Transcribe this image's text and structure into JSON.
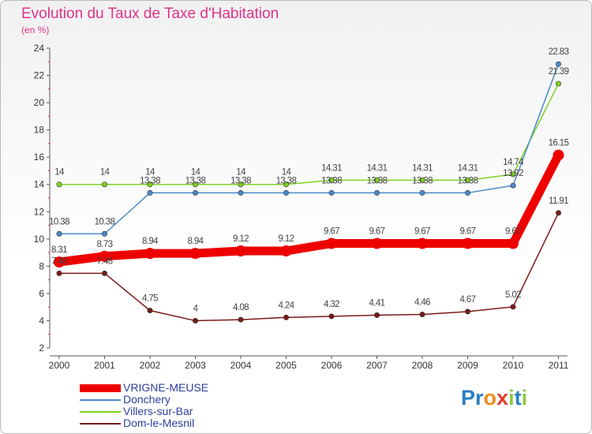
{
  "title": "Evolution du Taux de Taxe d'Habitation",
  "subtitle": "(en %)",
  "logo": {
    "text": "Proxiti",
    "letters": [
      "P",
      "r",
      "o",
      "x",
      "i",
      "t",
      "i"
    ],
    "colors": [
      "#2a7fc0",
      "#2a7fc0",
      "#f08a1e",
      "#e53a2a",
      "#8cc63f",
      "#2a7fc0",
      "#8cc63f"
    ]
  },
  "chart_data": {
    "type": "line",
    "title": "Evolution du Taux de Taxe d'Habitation",
    "ylabel": "(en %)",
    "xlabel": "",
    "x": [
      "2000",
      "2001",
      "2002",
      "2003",
      "2004",
      "2005",
      "2006",
      "2007",
      "2008",
      "2009",
      "2010",
      "2011"
    ],
    "ylim": [
      2,
      24
    ],
    "yticks": [
      2,
      4,
      6,
      8,
      10,
      12,
      14,
      16,
      18,
      20,
      22,
      24
    ],
    "grid": false,
    "legend_position": "bottom-left",
    "series": [
      {
        "name": "VRIGNE-MEUSE",
        "color": "#ee0000",
        "emphasis": true,
        "values": [
          8.31,
          8.73,
          8.94,
          8.94,
          9.12,
          9.12,
          9.67,
          9.67,
          9.67,
          9.67,
          9.67,
          16.15
        ],
        "labels": [
          "8.31",
          "8.73",
          "8.94",
          "8.94",
          "9.12",
          "9.12",
          "9.67",
          "9.67",
          "9.67",
          "9.67",
          "9.67",
          "16.15"
        ]
      },
      {
        "name": "Donchery",
        "color": "#4a8ac9",
        "values": [
          10.38,
          10.38,
          13.38,
          13.38,
          13.38,
          13.38,
          13.38,
          13.38,
          13.38,
          13.38,
          13.92,
          22.83
        ],
        "labels": [
          "10.38",
          "10.38",
          "13.38",
          "13.38",
          "13.38",
          "13.38",
          "13.38",
          "13.38",
          "13.38",
          "13.38",
          "13.92",
          "22.83"
        ]
      },
      {
        "name": "Villers-sur-Bar",
        "color": "#7ed321",
        "values": [
          14,
          14,
          14,
          14,
          14,
          14,
          14.31,
          14.31,
          14.31,
          14.31,
          14.74,
          21.39
        ],
        "labels": [
          "14",
          "14",
          "14",
          "14",
          "14",
          "14",
          "14.31",
          "14.31",
          "14.31",
          "14.31",
          "14.74",
          "21.39"
        ]
      },
      {
        "name": "Dom-le-Mesnil",
        "color": "#7a1a1a",
        "values": [
          7.48,
          7.48,
          4.75,
          4,
          4.08,
          4.24,
          4.32,
          4.41,
          4.46,
          4.67,
          5.02,
          11.91
        ],
        "labels": [
          "7.48",
          "7.48",
          "4.75",
          "4",
          "4.08",
          "4.24",
          "4.32",
          "4.41",
          "4.46",
          "4.67",
          "5.02",
          "11.91"
        ]
      }
    ]
  }
}
